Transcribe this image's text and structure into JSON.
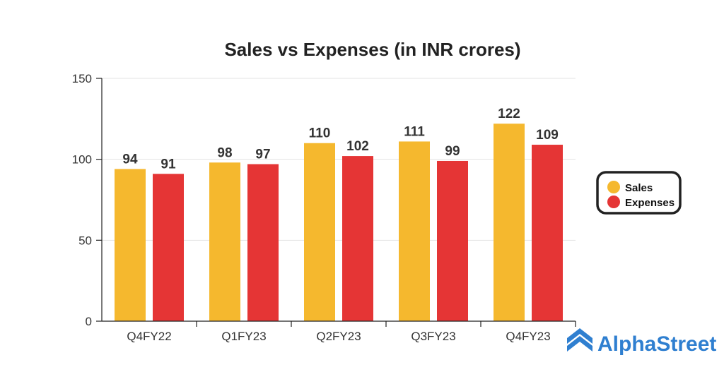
{
  "chart_data": {
    "type": "bar",
    "title": "Sales vs Expenses (in INR crores)",
    "categories": [
      "Q4FY22",
      "Q1FY23",
      "Q2FY23",
      "Q3FY23",
      "Q4FY23"
    ],
    "series": [
      {
        "name": "Sales",
        "values": [
          94,
          98,
          110,
          111,
          122
        ],
        "color": "#f5b82e"
      },
      {
        "name": "Expenses",
        "values": [
          91,
          97,
          102,
          99,
          109
        ],
        "color": "#e53535"
      }
    ],
    "yticks": [
      0,
      50,
      100,
      150
    ],
    "ylim": [
      0,
      150
    ],
    "xlabel": "",
    "ylabel": "",
    "legend_position": "right",
    "grid": true
  },
  "brand": {
    "name": "AlphaStreet",
    "color": "#2f7fd0"
  }
}
